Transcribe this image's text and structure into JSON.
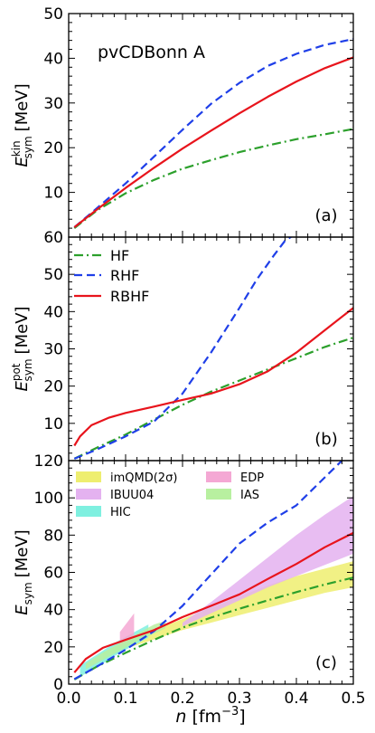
{
  "figure": {
    "annotation": "pvCDBonn A",
    "xlabel_main": "n",
    "xlabel_unit": "[fm",
    "xlabel_exp": "−3",
    "xlabel_close": "]"
  },
  "colors": {
    "HF": "#2ca02c",
    "RHF": "#1f3fe8",
    "RBHF": "#e8141c"
  },
  "chart_data": [
    {
      "type": "line",
      "panel_label": "(a)",
      "ylabel_main": "E",
      "ylabel_sup": "kin",
      "ylabel_sub": "sym",
      "ylabel_unit": "[MeV]",
      "xlim": [
        0,
        0.5
      ],
      "ylim": [
        0,
        50
      ],
      "yticks": [
        10,
        20,
        30,
        40,
        50
      ],
      "grid": false,
      "series": [
        {
          "name": "HF",
          "style": "dashdot",
          "x": [
            0.01,
            0.05,
            0.1,
            0.15,
            0.2,
            0.25,
            0.3,
            0.35,
            0.4,
            0.45,
            0.5
          ],
          "y": [
            2.0,
            6.0,
            9.8,
            12.8,
            15.3,
            17.2,
            19.0,
            20.5,
            21.9,
            23.0,
            24.2
          ]
        },
        {
          "name": "RHF",
          "style": "dashed",
          "x": [
            0.01,
            0.05,
            0.1,
            0.15,
            0.2,
            0.25,
            0.3,
            0.35,
            0.4,
            0.45,
            0.5
          ],
          "y": [
            2.2,
            6.5,
            12.0,
            18.0,
            24.0,
            29.8,
            34.5,
            38.3,
            41.0,
            43.0,
            44.3
          ]
        },
        {
          "name": "RBHF",
          "style": "solid",
          "x": [
            0.01,
            0.05,
            0.1,
            0.15,
            0.2,
            0.25,
            0.3,
            0.35,
            0.4,
            0.45,
            0.5
          ],
          "y": [
            2.2,
            6.2,
            11.0,
            15.5,
            19.8,
            23.8,
            27.7,
            31.4,
            34.8,
            37.8,
            40.2
          ]
        }
      ]
    },
    {
      "type": "line",
      "panel_label": "(b)",
      "ylabel_main": "E",
      "ylabel_sup": "pot",
      "ylabel_sub": "sym",
      "ylabel_unit": "[MeV]",
      "xlim": [
        0,
        0.5
      ],
      "ylim": [
        0,
        60
      ],
      "yticks": [
        10,
        20,
        30,
        40,
        50,
        60
      ],
      "grid": false,
      "legend": {
        "placement": "top-left",
        "entries": [
          "HF",
          "RHF",
          "RBHF"
        ]
      },
      "series": [
        {
          "name": "HF",
          "style": "dashdot",
          "x": [
            0.01,
            0.05,
            0.1,
            0.15,
            0.2,
            0.25,
            0.3,
            0.35,
            0.4,
            0.45,
            0.5
          ],
          "y": [
            0.5,
            3.5,
            7.0,
            11.0,
            15.0,
            18.5,
            21.5,
            24.5,
            27.5,
            30.5,
            33.0
          ]
        },
        {
          "name": "RHF",
          "style": "dashed",
          "x": [
            0.01,
            0.05,
            0.1,
            0.15,
            0.2,
            0.25,
            0.3,
            0.33,
            0.36,
            0.38,
            0.4
          ],
          "y": [
            0.5,
            3.0,
            6.5,
            10.5,
            18.0,
            29.0,
            41.0,
            48.5,
            55.0,
            59.0,
            61.0
          ]
        },
        {
          "name": "RBHF",
          "style": "solid",
          "x": [
            0.01,
            0.02,
            0.04,
            0.07,
            0.1,
            0.15,
            0.2,
            0.25,
            0.3,
            0.35,
            0.4,
            0.45,
            0.5
          ],
          "y": [
            4.0,
            6.5,
            9.5,
            11.5,
            12.8,
            14.5,
            16.3,
            18.0,
            20.5,
            24.0,
            29.0,
            35.0,
            41.0
          ]
        }
      ]
    },
    {
      "type": "line",
      "panel_label": "(c)",
      "ylabel_main": "E",
      "ylabel_sub": "sym",
      "ylabel_unit": "[MeV]",
      "xlim": [
        0,
        0.5
      ],
      "ylim": [
        0,
        120
      ],
      "yticks": [
        0,
        20,
        40,
        60,
        80,
        100,
        120
      ],
      "xticks": [
        0.0,
        0.1,
        0.2,
        0.3,
        0.4,
        0.5
      ],
      "xticklabels": [
        "0.0",
        "0.1",
        "0.2",
        "0.3",
        "0.4",
        "0.5"
      ],
      "grid": false,
      "legend": {
        "placement": "top",
        "entries": [
          "imQMD(2σ)",
          "EDP",
          "IBUU04",
          "IAS",
          "HIC"
        ]
      },
      "bands": [
        {
          "name": "imQMD(2σ)",
          "color": "#eeee70",
          "x": [
            0.06,
            0.1,
            0.15,
            0.2,
            0.25,
            0.3,
            0.35,
            0.4,
            0.45,
            0.5
          ],
          "lower": [
            13,
            19,
            24,
            29,
            33,
            37,
            41,
            45,
            49,
            52
          ],
          "upper": [
            17,
            23,
            29,
            35,
            41,
            47,
            53,
            58,
            62,
            66
          ]
        },
        {
          "name": "IBUU04",
          "color": "#e4b2f0",
          "x": [
            0.2,
            0.25,
            0.3,
            0.35,
            0.4,
            0.45,
            0.5
          ],
          "lower": [
            31,
            38,
            45,
            52,
            58,
            64,
            70
          ],
          "upper": [
            33,
            44,
            56,
            68,
            80,
            91,
            101
          ]
        },
        {
          "name": "HIC",
          "color": "#7ff0e0",
          "x": [
            0.02,
            0.05,
            0.08,
            0.11,
            0.14
          ],
          "lower": [
            4,
            9,
            15,
            20,
            25
          ],
          "upper": [
            10,
            16,
            22,
            27,
            32
          ]
        },
        {
          "name": "EDP",
          "color": "#f4a8d4",
          "x": [
            0.09,
            0.1,
            0.11,
            0.115
          ],
          "lower": [
            20,
            22,
            24,
            25
          ],
          "upper": [
            28,
            32,
            36,
            38
          ]
        },
        {
          "name": "IAS",
          "color": "#b8f0a0",
          "x": [
            0.03,
            0.06,
            0.09,
            0.12,
            0.15,
            0.17
          ],
          "lower": [
            8,
            13,
            18,
            23,
            27,
            30
          ],
          "upper": [
            11,
            17,
            22,
            27,
            32,
            34
          ]
        }
      ],
      "series": [
        {
          "name": "HF",
          "style": "dashdot",
          "x": [
            0.01,
            0.05,
            0.1,
            0.15,
            0.2,
            0.25,
            0.3,
            0.35,
            0.4,
            0.45,
            0.5
          ],
          "y": [
            2.5,
            9.5,
            16.8,
            23.8,
            30.3,
            35.7,
            40.5,
            45.0,
            49.4,
            53.5,
            57.2
          ]
        },
        {
          "name": "RHF",
          "style": "dashed",
          "x": [
            0.01,
            0.05,
            0.1,
            0.15,
            0.2,
            0.25,
            0.3,
            0.35,
            0.4,
            0.45,
            0.48
          ],
          "y": [
            2.7,
            9.5,
            18.5,
            28.5,
            42.0,
            58.8,
            75.5,
            86.8,
            96.0,
            111.0,
            120.0
          ]
        },
        {
          "name": "RBHF",
          "style": "solid",
          "x": [
            0.01,
            0.03,
            0.06,
            0.1,
            0.15,
            0.2,
            0.25,
            0.3,
            0.35,
            0.4,
            0.45,
            0.5
          ],
          "y": [
            6.2,
            13.5,
            19.5,
            23.8,
            29.0,
            36.0,
            42.0,
            48.2,
            56.5,
            64.5,
            73.5,
            81.2
          ]
        }
      ]
    }
  ]
}
